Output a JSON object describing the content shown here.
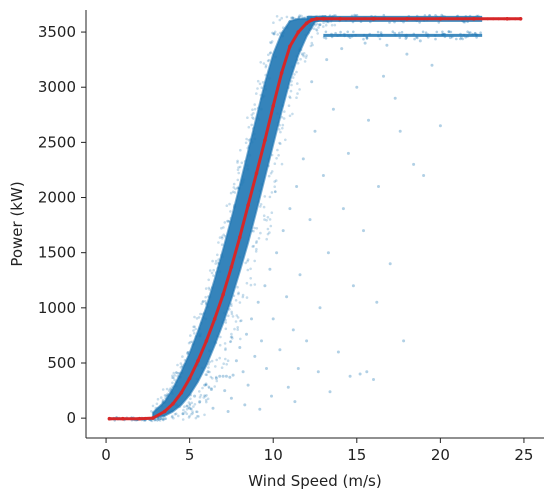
{
  "chart_data": {
    "type": "scatter",
    "title": "",
    "xlabel": "Wind Speed (m/s)",
    "ylabel": "Power (kW)",
    "xlim": [
      -1.2,
      26.2
    ],
    "ylim": [
      -180,
      3700
    ],
    "x_ticks": [
      0,
      5,
      10,
      15,
      20,
      25
    ],
    "y_ticks": [
      0,
      500,
      1000,
      1500,
      2000,
      2500,
      3000,
      3500
    ],
    "grid": false,
    "legend": "none",
    "series": [
      {
        "kind": "scatter",
        "color": "#1f77b4",
        "opacity": 0.25,
        "main_band": {
          "x": [
            2.8,
            3.5,
            4,
            4.5,
            5,
            5.5,
            6,
            6.5,
            7,
            7.5,
            8,
            8.5,
            9,
            9.5,
            10,
            10.5,
            11,
            11.5,
            12,
            12.5,
            13,
            13.5
          ],
          "y_low": [
            0,
            20,
            60,
            120,
            210,
            330,
            480,
            660,
            860,
            1080,
            1330,
            1590,
            1880,
            2180,
            2480,
            2780,
            3060,
            3290,
            3460,
            3590,
            3620,
            3620
          ],
          "y_high": [
            50,
            150,
            270,
            420,
            590,
            790,
            1010,
            1260,
            1530,
            1810,
            2110,
            2420,
            2730,
            3040,
            3300,
            3490,
            3600,
            3620,
            3620,
            3620,
            3620,
            3620
          ]
        },
        "plateaus": [
          {
            "y": 3620,
            "x_range": [
              12.0,
              22.5
            ]
          },
          {
            "y": 3470,
            "x_range": [
              13.0,
              22.5
            ]
          }
        ],
        "outliers": [
          [
            4.2,
            120
          ],
          [
            4.6,
            40
          ],
          [
            5.0,
            90
          ],
          [
            5.3,
            200
          ],
          [
            5.6,
            150
          ],
          [
            5.9,
            300
          ],
          [
            6.1,
            420
          ],
          [
            6.3,
            260
          ],
          [
            6.6,
            360
          ],
          [
            6.8,
            380
          ],
          [
            7.0,
            380
          ],
          [
            7.2,
            380
          ],
          [
            7.4,
            370
          ],
          [
            7.6,
            390
          ],
          [
            7.1,
            250
          ],
          [
            7.5,
            180
          ],
          [
            7.8,
            520
          ],
          [
            8.0,
            640
          ],
          [
            8.2,
            420
          ],
          [
            8.4,
            760
          ],
          [
            8.5,
            300
          ],
          [
            8.7,
            900
          ],
          [
            8.9,
            560
          ],
          [
            9.1,
            1050
          ],
          [
            9.3,
            700
          ],
          [
            9.5,
            1200
          ],
          [
            9.6,
            450
          ],
          [
            9.8,
            1350
          ],
          [
            10.0,
            900
          ],
          [
            10.2,
            1500
          ],
          [
            10.4,
            620
          ],
          [
            10.6,
            1700
          ],
          [
            10.8,
            1100
          ],
          [
            11.0,
            1900
          ],
          [
            11.2,
            800
          ],
          [
            11.4,
            2100
          ],
          [
            11.6,
            1300
          ],
          [
            11.8,
            2350
          ],
          [
            12.0,
            700
          ],
          [
            12.2,
            1800
          ],
          [
            12.5,
            2600
          ],
          [
            12.8,
            1000
          ],
          [
            13.0,
            2200
          ],
          [
            13.3,
            1500
          ],
          [
            13.6,
            2800
          ],
          [
            13.9,
            600
          ],
          [
            14.2,
            1900
          ],
          [
            14.5,
            2400
          ],
          [
            14.8,
            1200
          ],
          [
            15.0,
            3000
          ],
          [
            15.2,
            400
          ],
          [
            15.4,
            1700
          ],
          [
            15.7,
            2700
          ],
          [
            16.0,
            350
          ],
          [
            16.3,
            2100
          ],
          [
            16.6,
            3100
          ],
          [
            17.0,
            1400
          ],
          [
            17.3,
            2900
          ],
          [
            17.6,
            2600
          ],
          [
            18.0,
            3300
          ],
          [
            18.4,
            2300
          ],
          [
            19.0,
            2200
          ],
          [
            19.5,
            3200
          ],
          [
            20.0,
            2650
          ],
          [
            12.3,
            3050
          ],
          [
            13.2,
            3250
          ],
          [
            14.1,
            3350
          ],
          [
            15.5,
            3400
          ],
          [
            16.8,
            3380
          ],
          [
            18.8,
            3420
          ],
          [
            20.6,
            3450
          ],
          [
            11.5,
            450
          ],
          [
            9.9,
            200
          ],
          [
            8.3,
            120
          ],
          [
            10.9,
            280
          ],
          [
            12.7,
            420
          ],
          [
            14.6,
            380
          ],
          [
            15.6,
            420
          ],
          [
            16.2,
            1050
          ],
          [
            17.8,
            700
          ],
          [
            6.4,
            90
          ],
          [
            7.3,
            60
          ],
          [
            9.2,
            80
          ],
          [
            11.3,
            150
          ],
          [
            13.4,
            240
          ],
          [
            4.9,
            350
          ],
          [
            5.5,
            480
          ],
          [
            6.2,
            610
          ]
        ]
      },
      {
        "kind": "line",
        "color": "#d62728",
        "x": [
          0.2,
          1,
          2,
          2.8,
          3.5,
          4,
          4.5,
          5,
          5.5,
          6,
          6.5,
          7,
          7.5,
          8,
          8.5,
          9,
          9.5,
          10,
          10.5,
          11,
          11.5,
          12,
          12.3,
          12.6,
          13,
          14,
          16,
          18,
          20,
          22,
          24,
          24.8
        ],
        "y": [
          -5,
          -5,
          -5,
          0,
          60,
          130,
          230,
          360,
          520,
          700,
          900,
          1120,
          1370,
          1640,
          1930,
          2220,
          2520,
          2830,
          3130,
          3370,
          3500,
          3580,
          3610,
          3620,
          3620,
          3620,
          3620,
          3620,
          3620,
          3620,
          3620,
          3620
        ]
      }
    ]
  }
}
